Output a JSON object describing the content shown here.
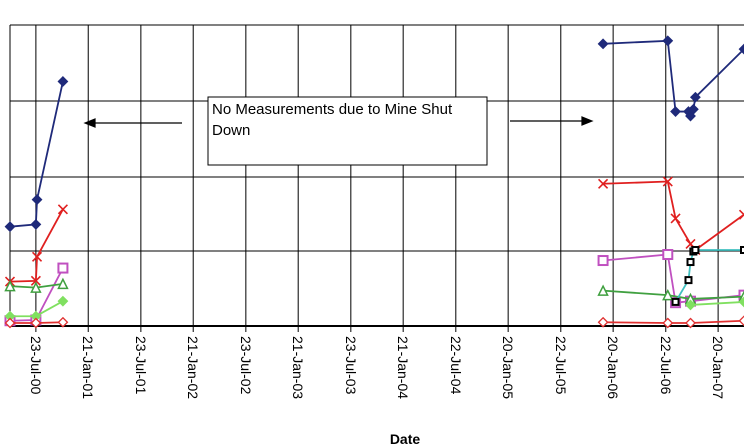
{
  "chart_data": {
    "type": "line",
    "x_label": "Date",
    "annotation": "No Measurements due to Mine Shut Down",
    "xlim": [
      "2000-04-24",
      "2007-04-20"
    ],
    "ylim": [
      0,
      4
    ],
    "xticks": [
      {
        "value": "2000-07-23",
        "label": "23-Jul-00"
      },
      {
        "value": "2001-01-21",
        "label": "21-Jan-01"
      },
      {
        "value": "2001-07-23",
        "label": "23-Jul-01"
      },
      {
        "value": "2002-01-21",
        "label": "21-Jan-02"
      },
      {
        "value": "2002-07-23",
        "label": "23-Jul-02"
      },
      {
        "value": "2003-01-21",
        "label": "21-Jan-03"
      },
      {
        "value": "2003-07-23",
        "label": "23-Jul-03"
      },
      {
        "value": "2004-01-21",
        "label": "21-Jan-04"
      },
      {
        "value": "2004-07-22",
        "label": "22-Jul-04"
      },
      {
        "value": "2005-01-20",
        "label": "20-Jan-05"
      },
      {
        "value": "2005-07-22",
        "label": "22-Jul-05"
      },
      {
        "value": "2006-01-20",
        "label": "20-Jan-06"
      },
      {
        "value": "2006-07-22",
        "label": "22-Jul-06"
      },
      {
        "value": "2007-01-20",
        "label": "20-Jan-07"
      }
    ],
    "grid": true,
    "series": [
      {
        "color": "#1f2a7a",
        "marker": "diamond",
        "x": [
          "2000-04-24",
          "2000-07-23",
          "2000-07-27",
          "2000-10-25",
          null,
          "2005-12-16",
          "2006-07-29",
          "2006-08-25",
          "2006-10-09",
          "2006-10-16",
          "2006-10-26",
          "2006-11-02",
          "2007-04-20"
        ],
        "values": [
          1.32,
          1.35,
          1.68,
          3.25,
          null,
          3.75,
          3.79,
          2.85,
          2.85,
          2.79,
          2.88,
          3.04,
          3.68
        ]
      },
      {
        "color": "#e02020",
        "marker": "x",
        "x": [
          "2000-04-24",
          "2000-07-23",
          "2000-07-27",
          "2000-10-25",
          null,
          "2005-12-16",
          "2006-07-29",
          "2006-08-25",
          "2006-10-16",
          "2006-11-02",
          "2007-04-20"
        ],
        "values": [
          0.59,
          0.6,
          0.92,
          1.55,
          null,
          1.89,
          1.92,
          1.43,
          1.09,
          1.01,
          1.48
        ]
      },
      {
        "color": "#c050c0",
        "marker": "square",
        "x": [
          "2000-04-24",
          "2000-07-23",
          "2000-10-25",
          null,
          "2005-12-16",
          "2006-07-29",
          "2006-08-25",
          "2006-10-16",
          "2007-04-20"
        ],
        "values": [
          0.07,
          0.08,
          0.77,
          null,
          0.87,
          0.95,
          0.31,
          0.33,
          0.41
        ]
      },
      {
        "color": "#40a040",
        "marker": "triangle",
        "x": [
          "2000-04-24",
          "2000-07-23",
          "2000-10-25",
          null,
          "2005-12-16",
          "2006-07-29",
          "2006-10-16",
          "2007-04-20"
        ],
        "values": [
          0.53,
          0.51,
          0.56,
          null,
          0.47,
          0.41,
          0.36,
          0.39
        ]
      },
      {
        "color": "#80e060",
        "marker": "diamond",
        "x": [
          "2000-04-24",
          "2000-07-23",
          "2000-10-25",
          null,
          "2006-10-16",
          "2007-04-20"
        ],
        "values": [
          0.13,
          0.13,
          0.33,
          null,
          0.28,
          0.32
        ]
      },
      {
        "color": "#e03030",
        "marker": "open-diamond",
        "x": [
          "2000-04-24",
          "2000-07-23",
          "2000-10-25",
          null,
          "2005-12-16",
          "2006-07-29",
          "2006-10-16",
          "2007-04-20"
        ],
        "values": [
          0.04,
          0.04,
          0.05,
          null,
          0.05,
          0.04,
          0.04,
          0.07
        ]
      },
      {
        "color": "#40c0c0",
        "marker": "black-square",
        "x": [
          "2006-08-25",
          "2006-10-09",
          "2006-10-16",
          "2006-10-26",
          "2006-11-02",
          "2007-04-20"
        ],
        "values": [
          0.32,
          0.61,
          0.85,
          0.99,
          1.01,
          1.01
        ]
      }
    ]
  }
}
